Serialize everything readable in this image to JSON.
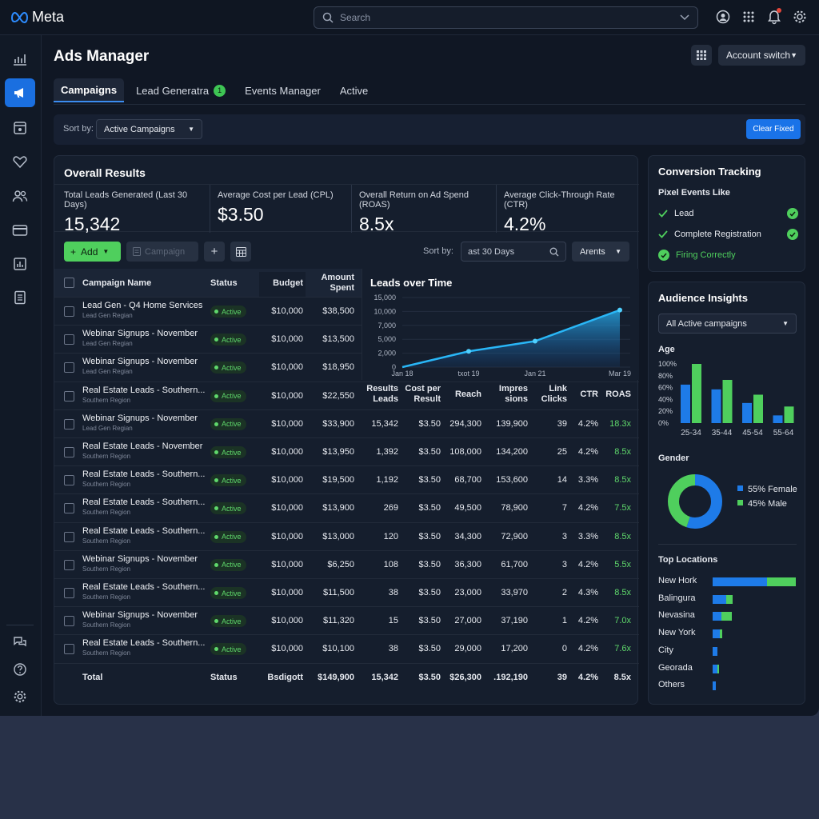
{
  "topbar": {
    "brand": "Meta",
    "search_placeholder": "Search"
  },
  "page": {
    "title": "Ads Manager",
    "account_switch": "Account switch"
  },
  "tabs": [
    {
      "label": "Campaigns",
      "active": true
    },
    {
      "label": "Lead Generatra",
      "badge": "1"
    },
    {
      "label": "Events Manager"
    },
    {
      "label": "Active"
    }
  ],
  "sortbar": {
    "label": "Sort by:",
    "value": "Active Campaigns",
    "clear_button": "Clear Fixed"
  },
  "overall": {
    "title": "Overall Results",
    "kpis": [
      {
        "label": "Total Leads Generated (Last 30 Days)",
        "value": "15,342"
      },
      {
        "label": "Average Cost per Lead (CPL)",
        "value": "$3.50"
      },
      {
        "label": "Overall Return on Ad Spend (ROAS)",
        "value": "8.5x"
      },
      {
        "label": "Average Click-Through Rate (CTR)",
        "value": "4.2%"
      }
    ],
    "toolbar": {
      "add": "Add",
      "campaign": "Campaign",
      "sort_label": "Sort by:",
      "sort_value": "ast 30 Days",
      "arents": "Arents"
    }
  },
  "table": {
    "headers": {
      "name": "Campaign Name",
      "status": "Status",
      "budget": "Budget",
      "amount_spent_1": "Amount",
      "amount_spent_2": "Spent",
      "results_1": "Results",
      "results_2": "Leads",
      "cpr_1": "Cost per",
      "cpr_2": "Result",
      "reach": "Reach",
      "impr_1": "Impres",
      "impr_2": "sions",
      "clicks_1": "Link",
      "clicks_2": "Clicks",
      "ctr": "CTR",
      "roas": "ROAS"
    },
    "rows": [
      {
        "name": "Lead Gen - Q4 Home Services",
        "region": "Lead Gen Regian",
        "status": "Active",
        "budget": "$10,000",
        "spent": "$38,500"
      },
      {
        "name": "Webinar Signups - November",
        "region": "Lead Gen Regian",
        "status": "Active",
        "budget": "$10,000",
        "spent": "$13,500"
      },
      {
        "name": "Webinar Signups - November",
        "region": "Lead Gen Regian",
        "status": "Active",
        "budget": "$10,000",
        "spent": "$18,950"
      },
      {
        "name": "Real Estate Leads - Southern...",
        "region": "Southern Region",
        "status": "Active",
        "budget": "$10,000",
        "spent": "$22,550"
      },
      {
        "name": "Webinar Signups - November",
        "region": "Lead Gen Regian",
        "status": "Active",
        "budget": "$10,000",
        "spent": "$33,900",
        "results": "15,342",
        "cpr": "$3.50",
        "reach": "294,300",
        "impr": "139,900",
        "clicks": "39",
        "ctr": "4.2%",
        "roas": "18.3x"
      },
      {
        "name": "Real Estate Leads - November",
        "region": "Southern Region",
        "status": "Active",
        "budget": "$10,000",
        "spent": "$13,950",
        "results": "1,392",
        "cpr": "$3.50",
        "reach": "108,000",
        "impr": "134,200",
        "clicks": "25",
        "ctr": "4.2%",
        "roas": "8.5x"
      },
      {
        "name": "Real Estate Leads - Southern...",
        "region": "Southern Region",
        "status": "Active",
        "budget": "$10,000",
        "spent": "$19,500",
        "results": "1,192",
        "cpr": "$3.50",
        "reach": "68,700",
        "impr": "153,600",
        "clicks": "14",
        "ctr": "3.3%",
        "roas": "8.5x"
      },
      {
        "name": "Real Estate Leads - Southern...",
        "region": "Southern Region",
        "status": "Active",
        "budget": "$10,000",
        "spent": "$13,900",
        "results": "269",
        "cpr": "$3.50",
        "reach": "49,500",
        "impr": "78,900",
        "clicks": "7",
        "ctr": "4.2%",
        "roas": "7.5x"
      },
      {
        "name": "Real Estate Leads - Southern...",
        "region": "Southern Region",
        "status": "Active",
        "budget": "$10,000",
        "spent": "$13,000",
        "results": "120",
        "cpr": "$3.50",
        "reach": "34,300",
        "impr": "72,900",
        "clicks": "3",
        "ctr": "3.3%",
        "roas": "8.5x"
      },
      {
        "name": "Webinar Signups - November",
        "region": "Southern Region",
        "status": "Active",
        "budget": "$10,000",
        "spent": "$6,250",
        "results": "108",
        "cpr": "$3.50",
        "reach": "36,300",
        "impr": "61,700",
        "clicks": "3",
        "ctr": "4.2%",
        "roas": "5.5x"
      },
      {
        "name": "Real Estate Leads - Southern...",
        "region": "Southern Region",
        "status": "Active",
        "budget": "$10,000",
        "spent": "$11,500",
        "results": "38",
        "cpr": "$3.50",
        "reach": "23,000",
        "impr": "33,970",
        "clicks": "2",
        "ctr": "4.3%",
        "roas": "8.5x"
      },
      {
        "name": "Webinar Signups - November",
        "region": "Southern Region",
        "status": "Active",
        "budget": "$10,000",
        "spent": "$11,320",
        "results": "15",
        "cpr": "$3.50",
        "reach": "27,000",
        "impr": "37,190",
        "clicks": "1",
        "ctr": "4.2%",
        "roas": "7.0x"
      },
      {
        "name": "Real Estate Leads - Southern...",
        "region": "Southern Region",
        "status": "Active",
        "budget": "$10,000",
        "spent": "$10,100",
        "results": "38",
        "cpr": "$3.50",
        "reach": "29,000",
        "impr": "17,200",
        "clicks": "0",
        "ctr": "4.2%",
        "roas": "7.6x"
      }
    ],
    "total": {
      "name": "Total",
      "status": "Status",
      "budget": "Bsdigott",
      "spent": "$149,900",
      "results": "15,342",
      "cpr": "$3.50",
      "reach": "$26,300",
      "impr": ".192,190",
      "clicks": "39",
      "ctr": "4.2%",
      "roas": "8.5x"
    }
  },
  "chart_data": [
    {
      "type": "line",
      "title": "Leads over Time",
      "x": [
        "Jan 18",
        "txot 19",
        "Jan 21",
        "Mar 19"
      ],
      "x_tick_labels": [
        "Jan 18",
        "txot 19",
        "Jan 21",
        "Mar 19"
      ],
      "series": [
        {
          "values": [
            0,
            2400,
            4600,
            10500
          ]
        }
      ],
      "y_ticks": [
        "15,000",
        "10,000",
        "7,000",
        "5,000",
        "2,000",
        "0"
      ],
      "ylim": [
        0,
        15000
      ],
      "color": "#29b6f6"
    },
    {
      "type": "bar",
      "title": "Age",
      "categories": [
        "25-34",
        "35-44",
        "45-54",
        "55-64"
      ],
      "series": [
        {
          "color": "#1e7be8",
          "values": [
            65,
            57,
            34,
            13
          ]
        },
        {
          "color": "#4fcf5d",
          "values": [
            100,
            73,
            48,
            28
          ]
        }
      ],
      "y_ticks": [
        "100%",
        "80%",
        "60%",
        "40%",
        "20%",
        "0%"
      ],
      "ylim": [
        0,
        100
      ]
    },
    {
      "type": "pie",
      "title": "Gender",
      "slices": [
        {
          "label": "55% Female",
          "value": 55,
          "color": "#1e7be8"
        },
        {
          "label": "45% Male",
          "value": 45,
          "color": "#4fcf5d"
        }
      ]
    }
  ],
  "conversion": {
    "title": "Conversion Tracking",
    "subtitle": "Pixel Events Like",
    "events": [
      {
        "label": "Lead",
        "ok": true
      },
      {
        "label": "Complete Registration",
        "ok": true
      }
    ],
    "firing": "Firing Correctly"
  },
  "audience": {
    "title": "Audience Insights",
    "filter": "All Active campaigns",
    "age_title": "Age",
    "gender_title": "Gender",
    "locations_title": "Top Locations",
    "locations": [
      {
        "name": "New Hork",
        "blue": 0.65,
        "green": 0.35
      },
      {
        "name": "Balingura",
        "blue": 0.16,
        "green": 0.08
      },
      {
        "name": "Nevasina",
        "blue": 0.11,
        "green": 0.12
      },
      {
        "name": "New York",
        "blue": 0.09,
        "green": 0.03
      },
      {
        "name": "City",
        "blue": 0.06,
        "green": 0.0
      },
      {
        "name": "Georada",
        "blue": 0.06,
        "green": 0.02
      },
      {
        "name": "Others",
        "blue": 0.04,
        "green": 0.0
      }
    ]
  },
  "colors": {
    "accent": "#1a73e8",
    "success": "#4fcf5d",
    "line": "#29b6f6"
  }
}
